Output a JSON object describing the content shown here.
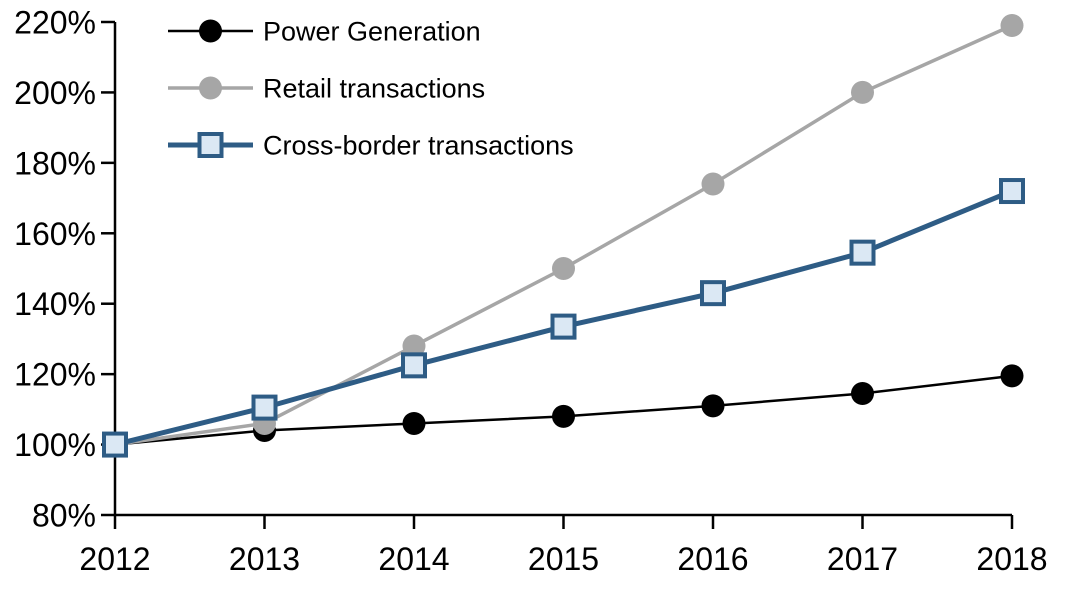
{
  "chart_data": {
    "type": "line",
    "title": "",
    "xlabel": "",
    "ylabel": "",
    "categories": [
      "2012",
      "2013",
      "2014",
      "2015",
      "2016",
      "2017",
      "2018"
    ],
    "y_tick_labels": [
      "80%",
      "100%",
      "120%",
      "140%",
      "160%",
      "180%",
      "200%",
      "220%"
    ],
    "ylim": [
      80,
      220
    ],
    "y_tick_step": 20,
    "grid": false,
    "legend_position": "top-left",
    "axis_color": "#000000",
    "series": [
      {
        "name": "Power Generation",
        "marker": "circle",
        "line_color": "#000000",
        "marker_fill": "#000000",
        "line_width": 2.5,
        "values": [
          100,
          104,
          106,
          108,
          111,
          114.5,
          119.5
        ]
      },
      {
        "name": "Retail transactions",
        "marker": "circle",
        "line_color": "#a6a6a6",
        "marker_fill": "#a6a6a6",
        "line_width": 3.5,
        "values": [
          100,
          106,
          128,
          150,
          174,
          200,
          219
        ]
      },
      {
        "name": "Cross-border transactions",
        "marker": "square",
        "line_color": "#2e5c85",
        "marker_fill": "#dbe8f4",
        "line_width": 5,
        "values": [
          100,
          110.5,
          122.5,
          133.5,
          143,
          154.5,
          172
        ]
      }
    ]
  }
}
